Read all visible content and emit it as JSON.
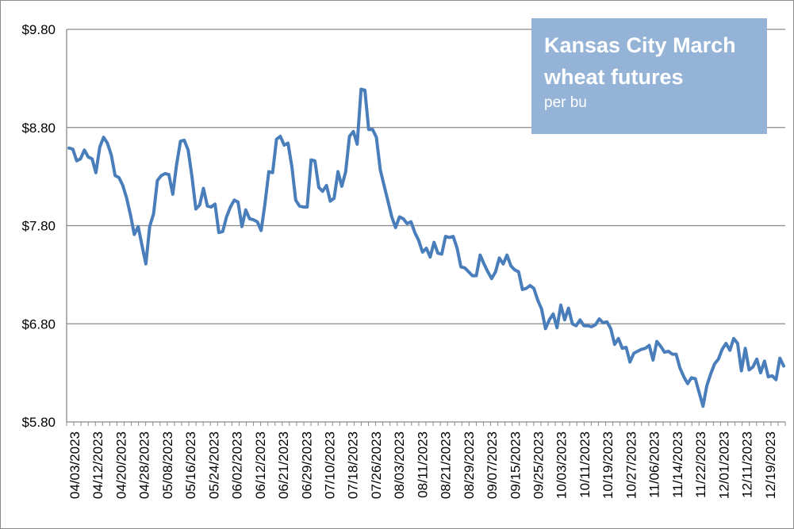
{
  "chart_data": {
    "type": "line",
    "title": "Kansas City March wheat futures",
    "subtitle": "per bu",
    "xlabel": "",
    "ylabel": "",
    "ylim": [
      5.8,
      9.8
    ],
    "yticks": [
      5.8,
      6.8,
      7.8,
      8.8,
      9.8
    ],
    "ytick_labels": [
      "$5.80",
      "$6.80",
      "$7.80",
      "$8.80",
      "$9.80"
    ],
    "grid": true,
    "x_tick_labels": [
      "04/03/2023",
      "04/12/2023",
      "04/20/2023",
      "04/28/2023",
      "05/08/2023",
      "05/16/2023",
      "05/24/2023",
      "06/02/2023",
      "06/12/2023",
      "06/21/2023",
      "06/29/2023",
      "07/10/2023",
      "07/18/2023",
      "07/26/2023",
      "08/03/2023",
      "08/11/2023",
      "08/21/2023",
      "08/29/2023",
      "09/07/2023",
      "09/15/2023",
      "09/25/2023",
      "10/03/2023",
      "10/11/2023",
      "10/19/2023",
      "10/27/2023",
      "11/06/2023",
      "11/14/2023",
      "11/22/2023",
      "12/01/2023",
      "12/11/2023",
      "12/19/2023"
    ],
    "series": [
      {
        "name": "Kansas City March wheat futures",
        "color": "#4a7ebb",
        "values": [
          8.59,
          8.58,
          8.46,
          8.48,
          8.57,
          8.5,
          8.48,
          8.34,
          8.6,
          8.7,
          8.64,
          8.52,
          8.31,
          8.29,
          8.21,
          8.08,
          7.91,
          7.71,
          7.79,
          7.6,
          7.41,
          7.79,
          7.92,
          8.26,
          8.31,
          8.33,
          8.32,
          8.12,
          8.42,
          8.66,
          8.67,
          8.57,
          8.3,
          7.97,
          8.01,
          8.18,
          8.0,
          7.99,
          8.02,
          7.73,
          7.74,
          7.89,
          7.99,
          8.06,
          8.04,
          7.79,
          7.96,
          7.87,
          7.86,
          7.84,
          7.75,
          8.02,
          8.35,
          8.34,
          8.68,
          8.71,
          8.62,
          8.64,
          8.4,
          8.06,
          8.0,
          7.99,
          7.99,
          8.47,
          8.46,
          8.19,
          8.15,
          8.21,
          8.05,
          8.08,
          8.35,
          8.2,
          8.35,
          8.71,
          8.76,
          8.63,
          9.19,
          9.18,
          8.78,
          8.78,
          8.7,
          8.37,
          8.21,
          8.05,
          7.89,
          7.78,
          7.89,
          7.87,
          7.82,
          7.84,
          7.73,
          7.65,
          7.53,
          7.57,
          7.48,
          7.63,
          7.52,
          7.51,
          7.69,
          7.68,
          7.69,
          7.57,
          7.38,
          7.37,
          7.33,
          7.29,
          7.29,
          7.5,
          7.41,
          7.33,
          7.26,
          7.33,
          7.47,
          7.41,
          7.5,
          7.39,
          7.35,
          7.33,
          7.15,
          7.16,
          7.19,
          7.16,
          7.04,
          6.95,
          6.75,
          6.84,
          6.9,
          6.76,
          6.99,
          6.84,
          6.96,
          6.8,
          6.78,
          6.84,
          6.78,
          6.78,
          6.77,
          6.79,
          6.85,
          6.81,
          6.82,
          6.75,
          6.59,
          6.65,
          6.55,
          6.56,
          6.41,
          6.5,
          6.52,
          6.54,
          6.55,
          6.58,
          6.43,
          6.62,
          6.57,
          6.51,
          6.52,
          6.49,
          6.49,
          6.35,
          6.26,
          6.19,
          6.25,
          6.24,
          6.1,
          5.96,
          6.17,
          6.29,
          6.39,
          6.44,
          6.54,
          6.6,
          6.53,
          6.65,
          6.6,
          6.32,
          6.55,
          6.33,
          6.36,
          6.44,
          6.3,
          6.42,
          6.26,
          6.27,
          6.23,
          6.45,
          6.37
        ]
      }
    ]
  }
}
